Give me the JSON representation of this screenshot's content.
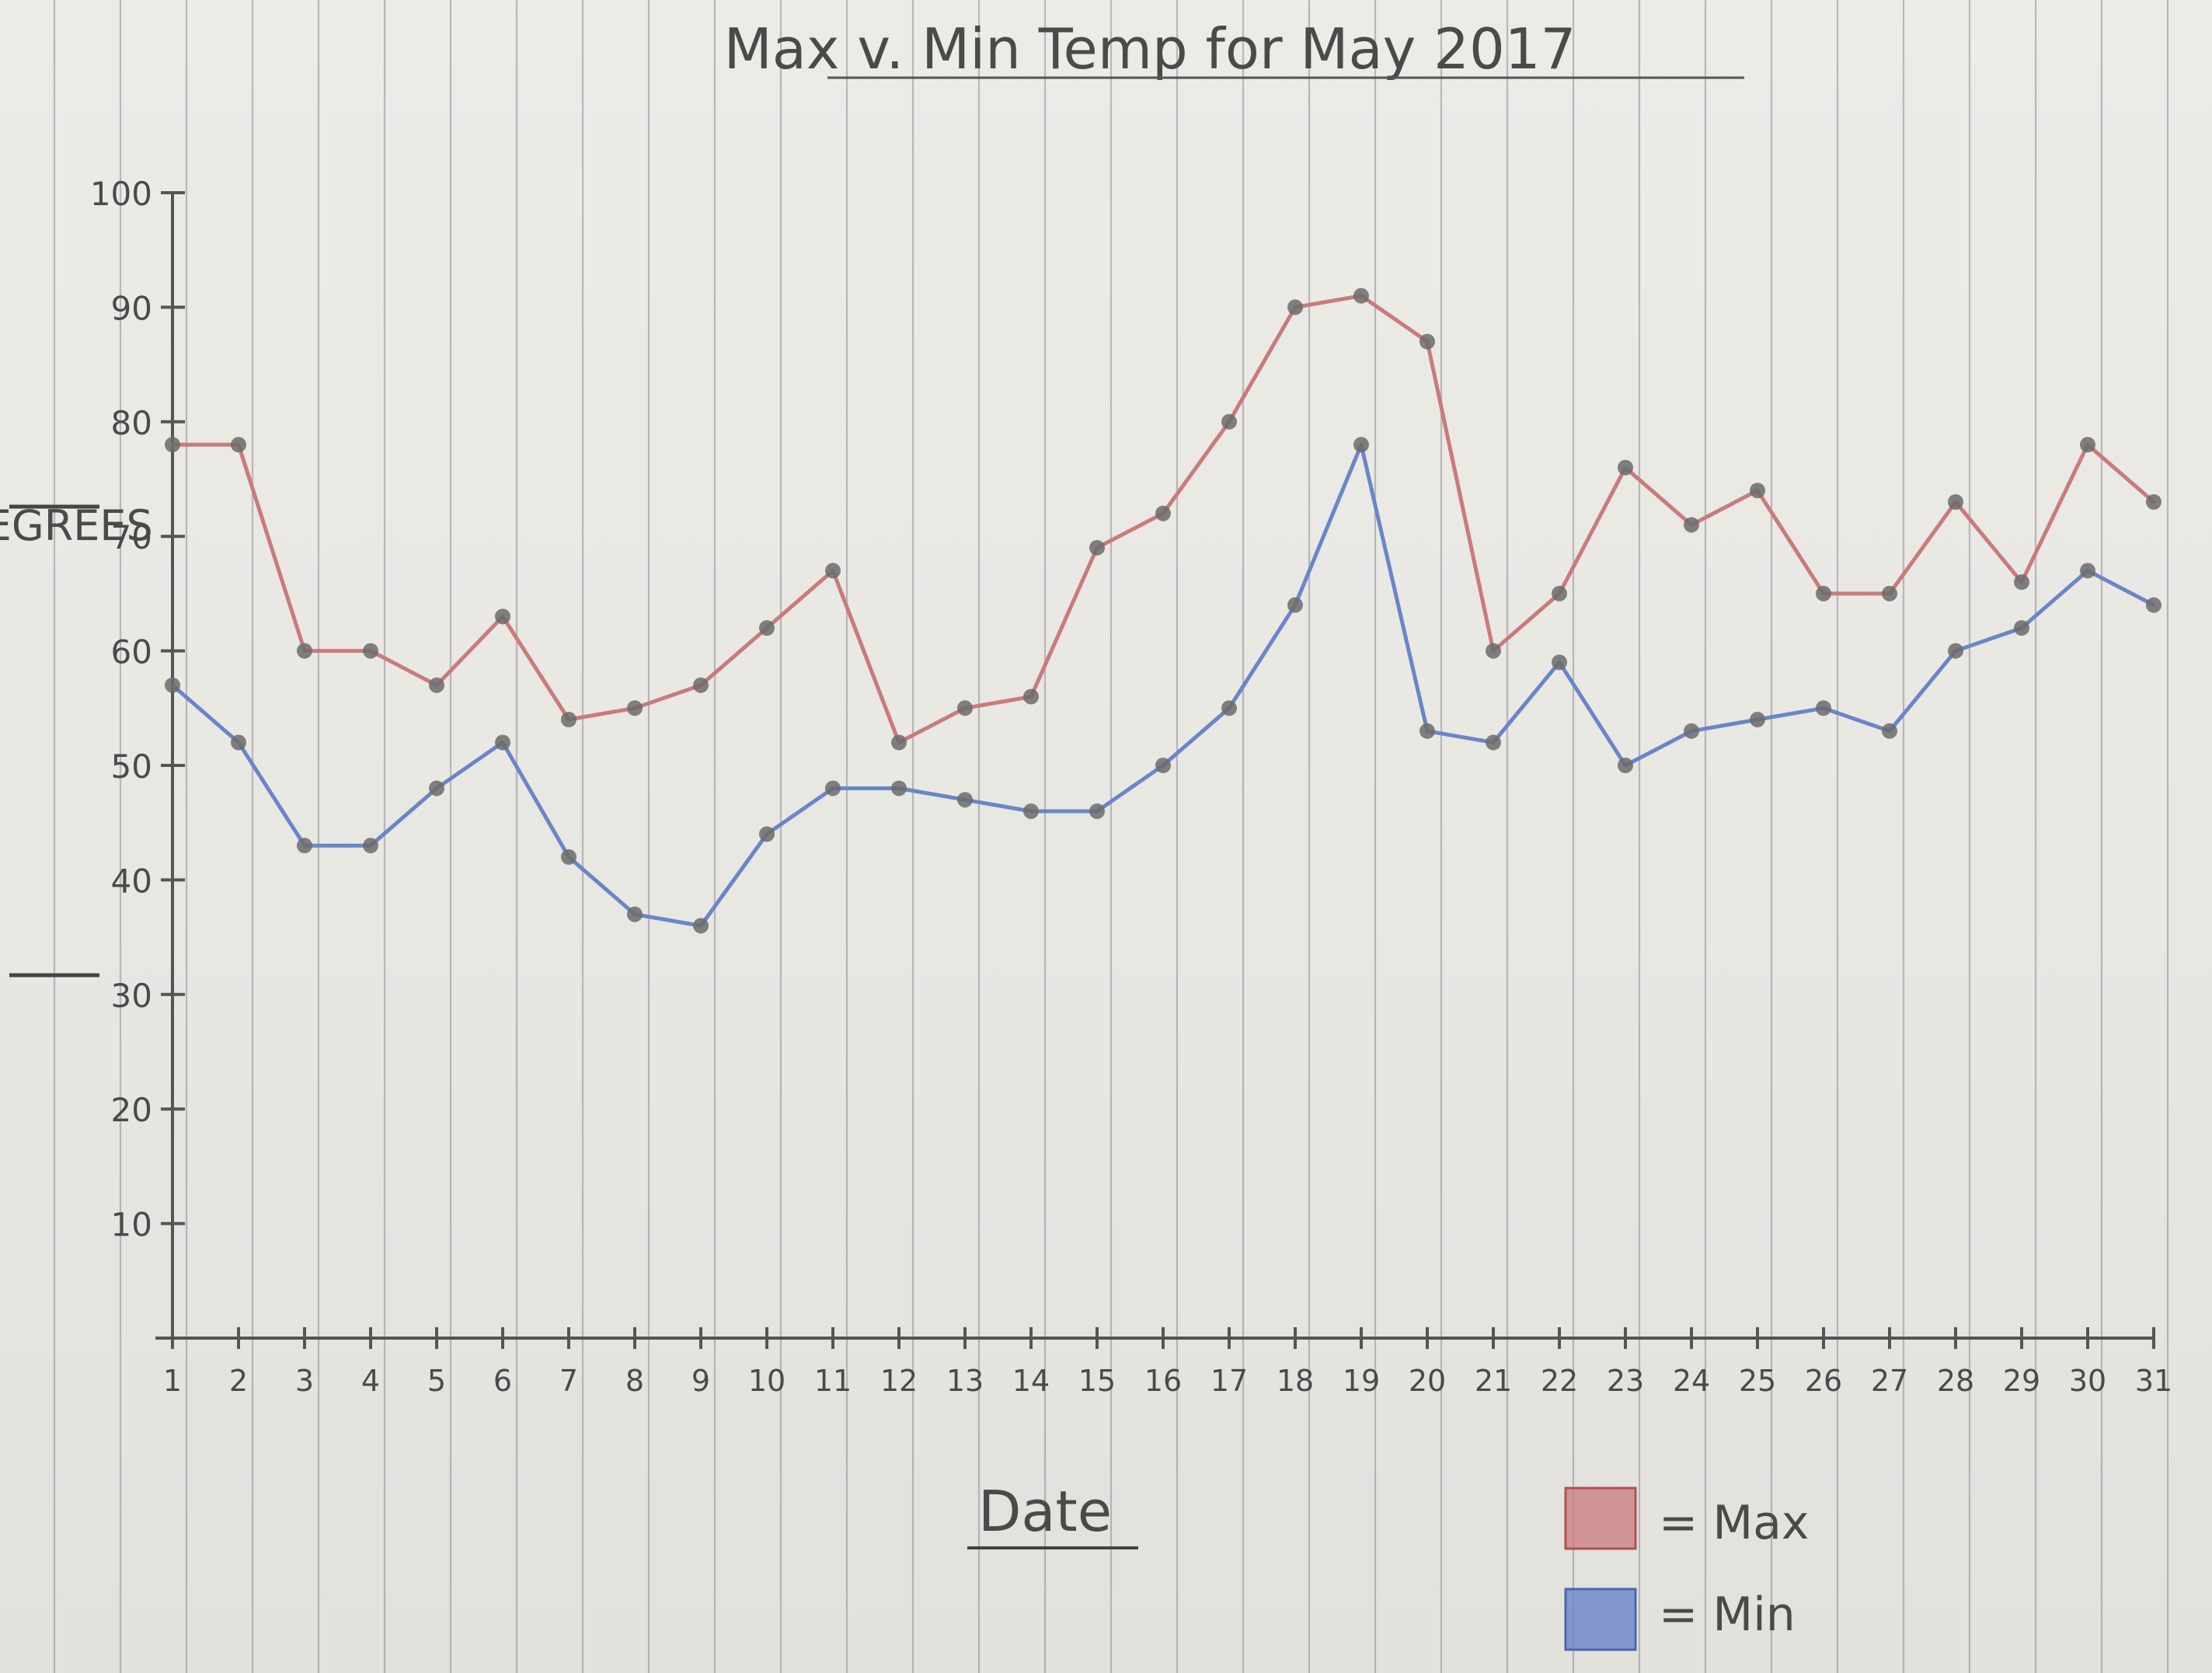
{
  "chart_data": {
    "type": "line",
    "title": "Max v. Min Temp for May 2017",
    "xlabel": "Date",
    "ylabel": "DEGREES",
    "x": [
      1,
      2,
      3,
      4,
      5,
      6,
      7,
      8,
      9,
      10,
      11,
      12,
      13,
      14,
      15,
      16,
      17,
      18,
      19,
      20,
      21,
      22,
      23,
      24,
      25,
      26,
      27,
      28,
      29,
      30,
      31
    ],
    "x_tick_labels": [
      "1",
      "2",
      "3",
      "4",
      "5",
      "6",
      "7",
      "8",
      "9",
      "10",
      "11",
      "12",
      "13",
      "14",
      "15",
      "16",
      "17",
      "18",
      "19",
      "20",
      "21",
      "22",
      "23",
      "24",
      "25",
      "26",
      "27",
      "28",
      "29",
      "30",
      "31"
    ],
    "y_ticks": [
      10,
      20,
      30,
      40,
      50,
      60,
      70,
      80,
      90,
      100
    ],
    "y_tick_labels": [
      "10",
      "20",
      "30",
      "40",
      "50",
      "60",
      "70",
      "80",
      "90",
      "100"
    ],
    "xlim": [
      1,
      31
    ],
    "ylim": [
      0,
      100
    ],
    "grid": false,
    "legend_position": "bottom-right",
    "series": [
      {
        "name": "Max",
        "legend_text": "= Max",
        "color": "#c97b7b",
        "values": [
          78,
          78,
          60,
          60,
          57,
          63,
          54,
          55,
          57,
          62,
          67,
          52,
          55,
          56,
          69,
          72,
          80,
          90,
          91,
          87,
          60,
          65,
          76,
          71,
          74,
          65,
          65,
          73,
          66,
          78,
          73
        ]
      },
      {
        "name": "Min",
        "legend_text": "= Min",
        "color": "#6a86c9",
        "values": [
          57,
          52,
          43,
          43,
          48,
          52,
          42,
          37,
          36,
          44,
          48,
          48,
          47,
          46,
          46,
          50,
          55,
          64,
          78,
          53,
          52,
          59,
          50,
          53,
          54,
          55,
          53,
          60,
          62,
          67,
          64
        ]
      }
    ]
  }
}
